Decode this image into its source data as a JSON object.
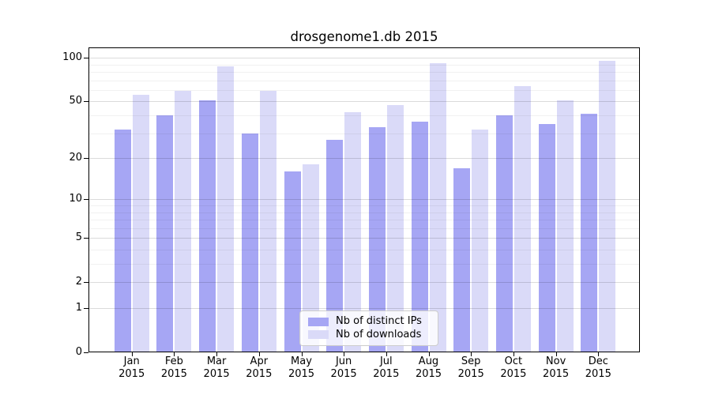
{
  "chart_data": {
    "type": "bar",
    "title": "drosgenome1.db 2015",
    "categories": [
      "Jan",
      "Feb",
      "Mar",
      "Apr",
      "May",
      "Jun",
      "Jul",
      "Aug",
      "Sep",
      "Oct",
      "Nov",
      "Dec"
    ],
    "x_tick_year": "2015",
    "series": [
      {
        "name": "Nb of distinct IPs",
        "color": "#a6a6f4",
        "values": [
          32,
          40,
          51,
          30,
          16,
          27,
          33,
          36,
          17,
          40,
          35,
          41
        ]
      },
      {
        "name": "Nb of downloads",
        "color": "#dadaf8",
        "values": [
          56,
          59,
          88,
          59,
          18,
          42,
          47,
          92,
          32,
          64,
          51,
          95
        ]
      }
    ],
    "yscale": "log1p",
    "ylim": [
      0,
      118
    ],
    "yticks": [
      0,
      1,
      2,
      5,
      10,
      20,
      50,
      100
    ],
    "minor_yticks": [
      3,
      4,
      6,
      7,
      8,
      9,
      30,
      40,
      60,
      70,
      80,
      90
    ],
    "grid": "on",
    "legend_position": "inside-bottom-center",
    "colors": {
      "background": "#ffffff",
      "axis": "#000000",
      "major_grid": "rgba(0,0,0,0.14)",
      "minor_grid": "rgba(0,0,0,0.055)"
    }
  }
}
